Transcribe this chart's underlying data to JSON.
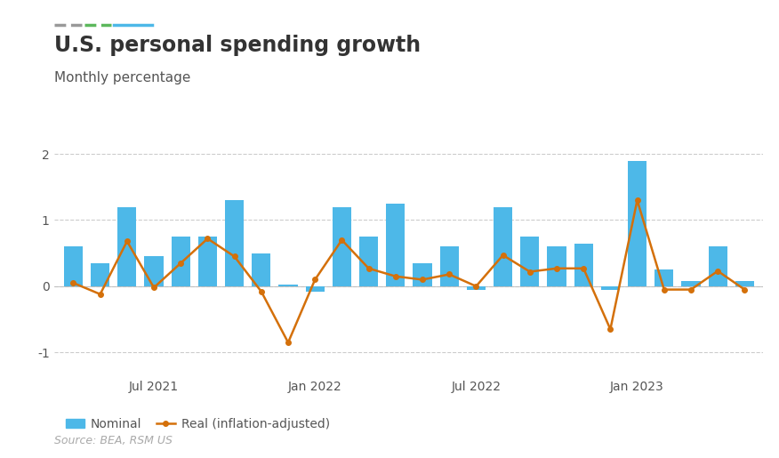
{
  "title": "U.S. personal spending growth",
  "subtitle": "Monthly percentage",
  "source": "Source: BEA, RSM US",
  "bar_color": "#4db8e8",
  "line_color": "#d4700a",
  "legend_nominal": "Nominal",
  "legend_real": "Real (inflation-adjusted)",
  "background_color": "#ffffff",
  "ylim": [
    -1.35,
    2.25
  ],
  "yticks": [
    -1,
    0,
    1,
    2
  ],
  "nominal": [
    0.6,
    0.35,
    1.2,
    0.45,
    0.75,
    0.75,
    1.3,
    0.5,
    0.02,
    -0.08,
    1.2,
    0.75,
    1.25,
    0.35,
    0.6,
    -0.05,
    1.2,
    0.75,
    0.6,
    0.65,
    -0.05,
    1.9,
    0.25,
    0.08,
    0.6,
    0.08
  ],
  "real": [
    0.05,
    -0.12,
    0.68,
    -0.02,
    0.35,
    0.72,
    0.45,
    -0.08,
    -0.85,
    0.1,
    0.7,
    0.27,
    0.15,
    0.1,
    0.18,
    0.0,
    0.47,
    0.22,
    0.27,
    0.27,
    -0.65,
    1.3,
    -0.05,
    -0.05,
    0.23,
    -0.05
  ],
  "xtick_positions": [
    3,
    9,
    15,
    21
  ],
  "xtick_labels": [
    "Jul 2021",
    "Jan 2022",
    "Jul 2022",
    "Jan 2023"
  ],
  "title_fontsize": 17,
  "subtitle_fontsize": 11,
  "source_fontsize": 9,
  "tick_fontsize": 10,
  "legend_fontsize": 10,
  "deco_line1_color": "#999999",
  "deco_line2_color": "#5cb85c",
  "deco_line3_color": "#4db8e8"
}
